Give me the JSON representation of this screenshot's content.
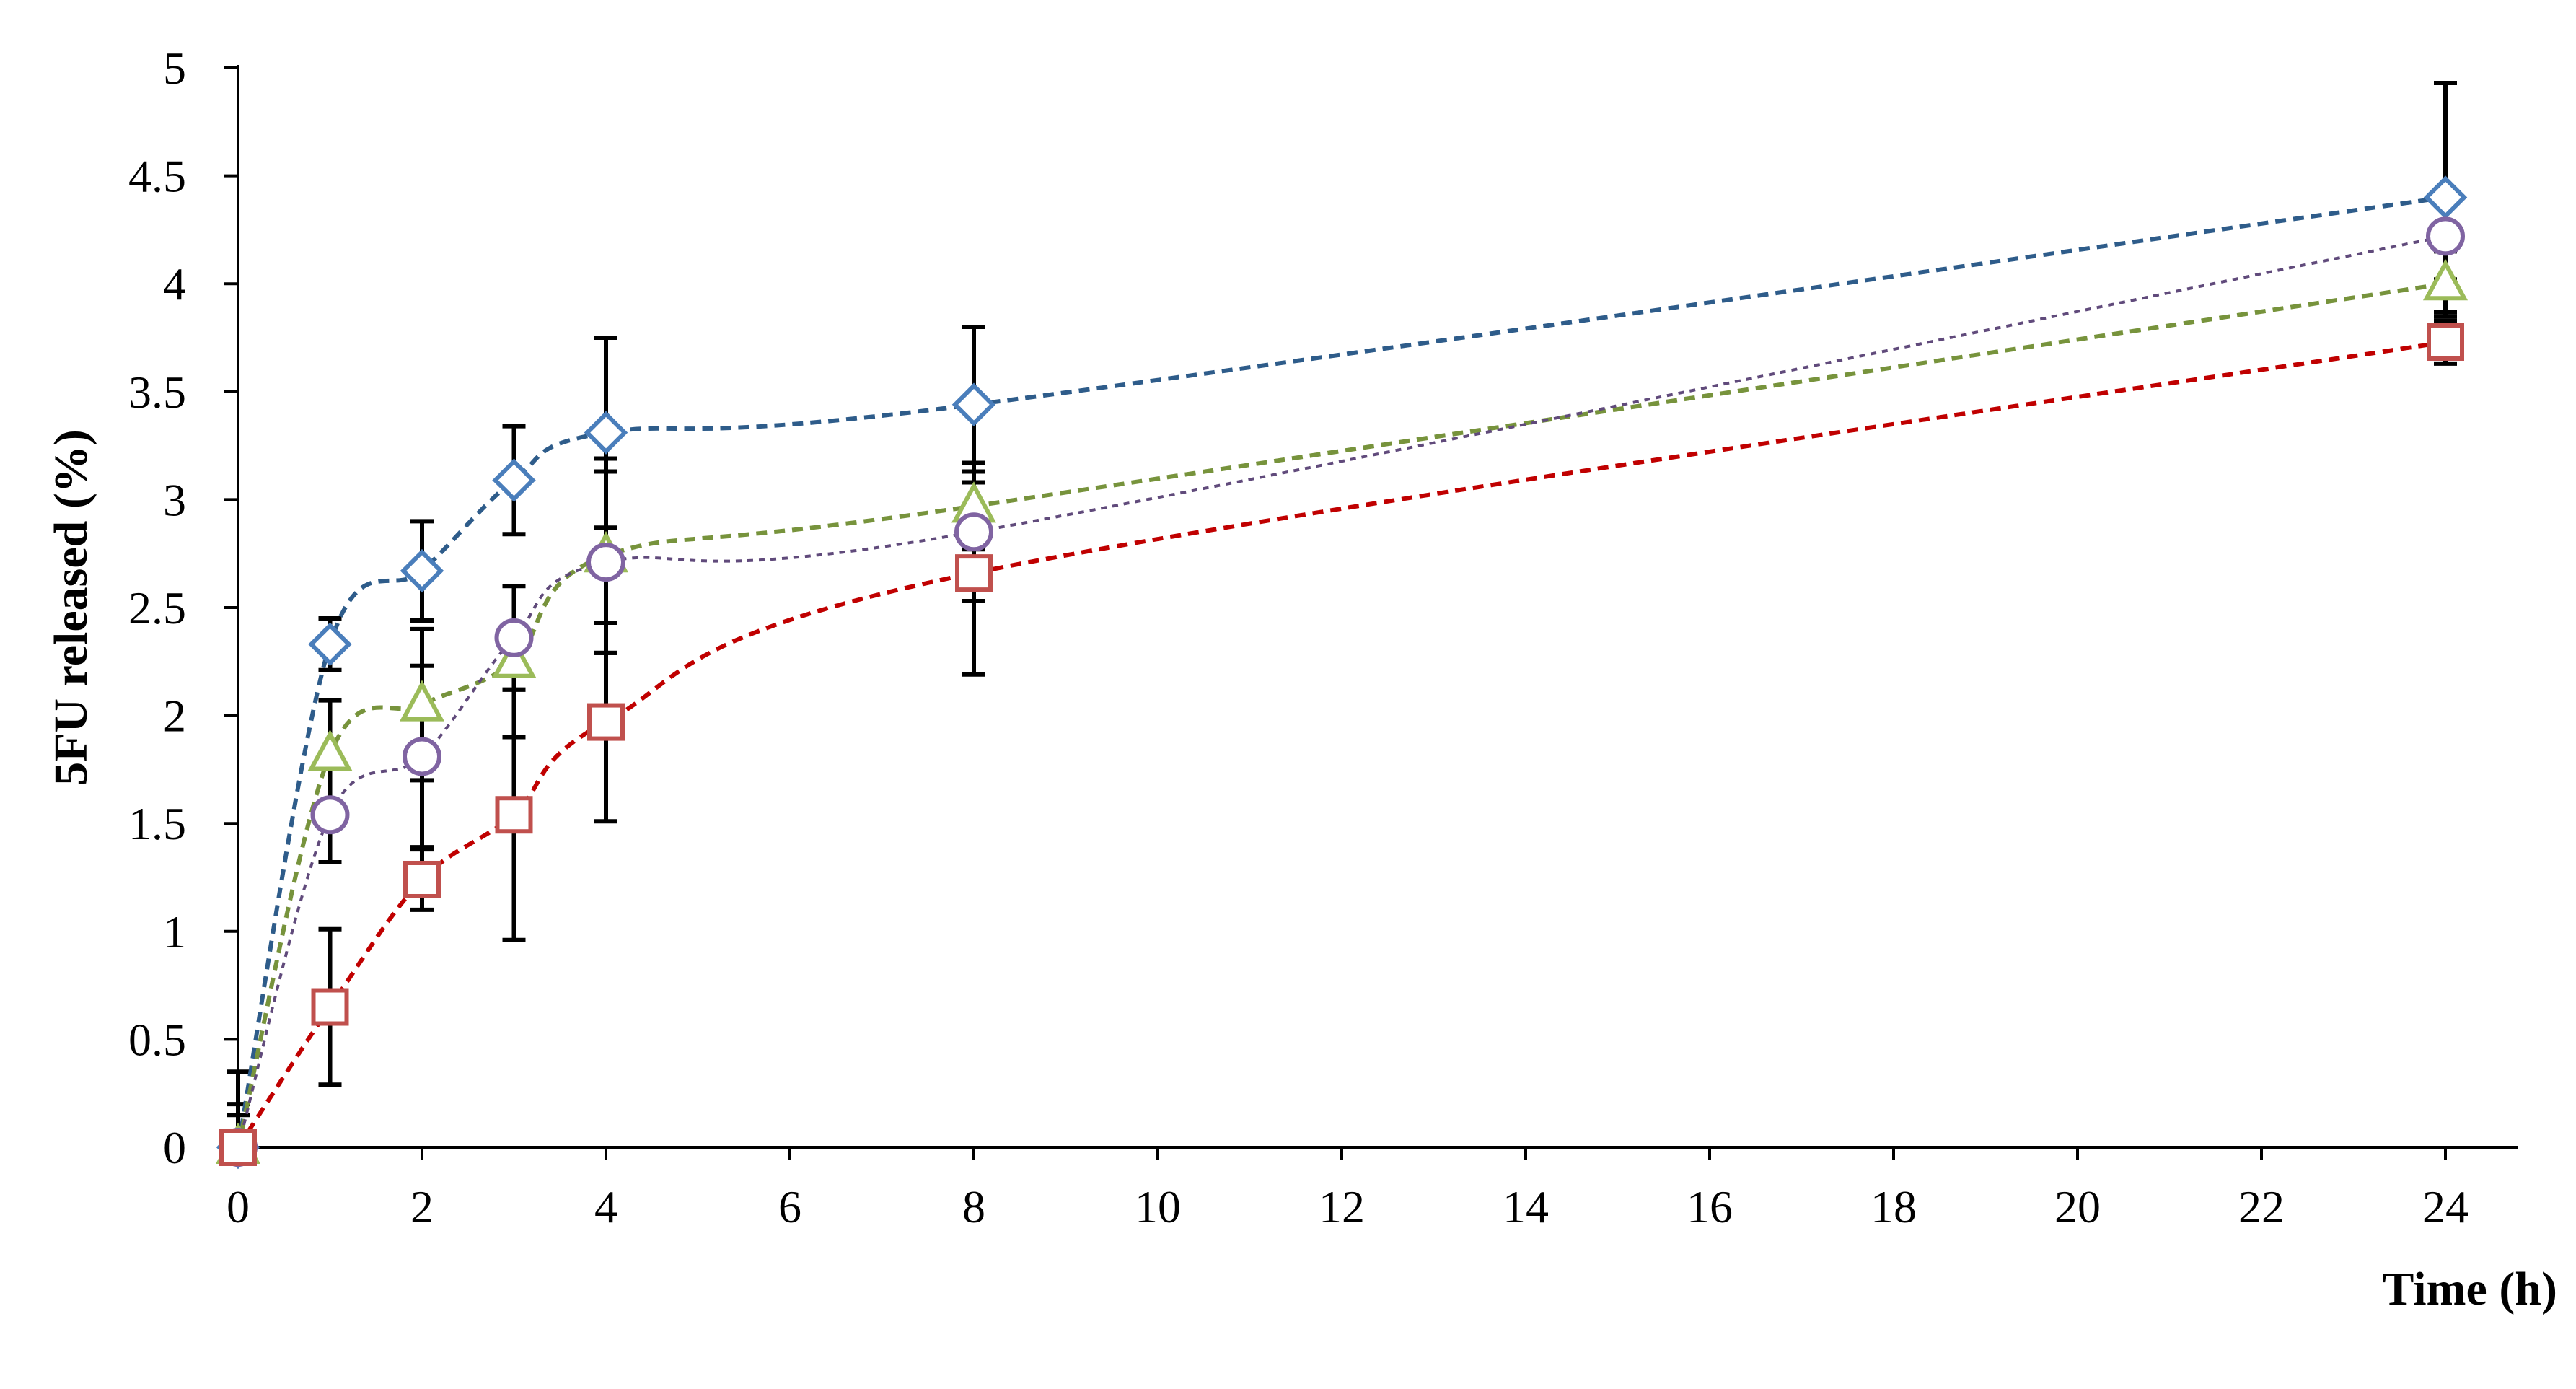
{
  "chart_data": {
    "type": "line",
    "title": "",
    "xlabel": "Time (h)",
    "ylabel": "5FU released (%)",
    "xlim": [
      0,
      24
    ],
    "ylim": [
      0,
      5
    ],
    "xticks": [
      0,
      2,
      4,
      6,
      8,
      10,
      12,
      14,
      16,
      18,
      20,
      22,
      24
    ],
    "yticks": [
      0,
      0.5,
      1,
      1.5,
      2,
      2.5,
      3,
      3.5,
      4,
      4.5,
      5
    ],
    "grid": false,
    "legend": "none",
    "x": [
      0,
      1,
      2,
      3,
      4,
      8,
      24
    ],
    "series": [
      {
        "marker": "diamond",
        "color": "#4a7ebb",
        "line_color": "#2e5c8a",
        "dash": "short",
        "values": [
          0,
          2.33,
          2.67,
          3.09,
          3.31,
          3.44,
          4.4
        ],
        "error": [
          0.35,
          0.12,
          0.23,
          0.25,
          0.44,
          0.36,
          0.53
        ]
      },
      {
        "marker": "triangle",
        "color": "#9bbb59",
        "line_color": "#77933c",
        "dash": "short",
        "values": [
          0,
          1.82,
          2.05,
          2.25,
          2.74,
          2.97,
          4.0
        ],
        "error": [
          0.2,
          0.25,
          0.35,
          0.35,
          0.45,
          0.2,
          0.15
        ]
      },
      {
        "marker": "circle",
        "color": "#8064a2",
        "line_color": "#604a7b",
        "dash": "fine",
        "values": [
          0,
          1.54,
          1.81,
          2.36,
          2.71,
          2.85,
          4.22
        ],
        "error": [
          0.15,
          0.22,
          0.42,
          0.24,
          0.42,
          0.32,
          0.2
        ]
      },
      {
        "marker": "square",
        "color": "#c0504d",
        "line_color": "#c00000",
        "dash": "short",
        "values": [
          0,
          0.65,
          1.24,
          1.54,
          1.97,
          2.66,
          3.73
        ],
        "error": [
          0.15,
          0.36,
          0.14,
          0.58,
          0.46,
          0.47,
          0.1
        ]
      }
    ]
  }
}
